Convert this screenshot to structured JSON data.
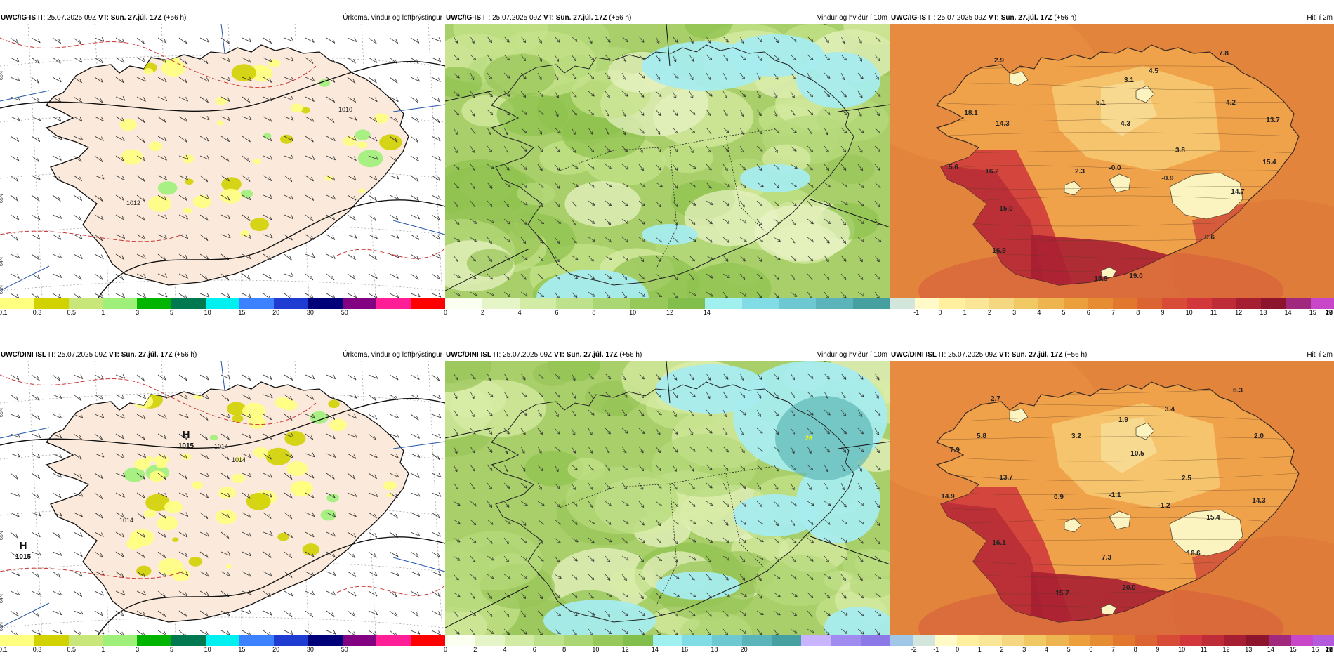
{
  "panels": [
    {
      "id": "p1",
      "model": "UWC/IG-IS",
      "it_label": "IT:",
      "it": "25.07.2025 09Z",
      "vt_label": "VT:",
      "vt": "Sun. 27.júl. 17Z",
      "offset": "(+56 h)",
      "title": "Úrkoma, vindur og loftþrýstingur",
      "type": "precip",
      "colorbar": {
        "colors": [
          "#ffff80",
          "#d2d200",
          "#c8e67a",
          "#9ef07a",
          "#00b400",
          "#007850",
          "#00f0f0",
          "#3c82ff",
          "#1e3cd2",
          "#000078",
          "#820082",
          "#ff1e96",
          "#ff0000"
        ],
        "ticks": [
          "0.1",
          "0.3",
          "0.5",
          "1",
          "3",
          "5",
          "10",
          "15",
          "20",
          "30",
          "50"
        ]
      },
      "lat_labels": [
        "66N",
        "65N",
        "64N",
        "63N"
      ],
      "pressure_labels": [
        "1012",
        "1010"
      ],
      "highs": []
    },
    {
      "id": "p2",
      "model": "UWC/IG-IS",
      "it_label": "IT:",
      "it": "25.07.2025 09Z",
      "vt_label": "VT:",
      "vt": "Sun. 27.júl. 17Z",
      "offset": "(+56 h)",
      "title": "Vindur og hviður í 10m",
      "type": "wind",
      "colorbar": {
        "colors": [
          "#fafff0",
          "#e6f5c8",
          "#d2eba5",
          "#bee18c",
          "#aad773",
          "#96c85a",
          "#82be4b",
          "#a0f0f0",
          "#82dce6",
          "#6ec8d2",
          "#5ab4b9",
          "#46a0a0"
        ],
        "ticks": [
          "0",
          "2",
          "4",
          "6",
          "8",
          "10",
          "12",
          "14"
        ]
      },
      "points": []
    },
    {
      "id": "p3",
      "model": "UWC/IG-IS",
      "it_label": "IT:",
      "it": "25.07.2025 09Z",
      "vt_label": "VT:",
      "vt": "Sun. 27.júl. 17Z",
      "offset": "(+56 h)",
      "title": "Hiti í 2m",
      "type": "temp",
      "colorbar": {
        "colors": [
          "#d2e6dc",
          "#fffac8",
          "#fff0a0",
          "#fae696",
          "#f5d782",
          "#f0c864",
          "#eeb450",
          "#eba03c",
          "#e68c32",
          "#e1782d",
          "#dc6432",
          "#d74b37",
          "#d2373c",
          "#be2d37",
          "#a51e32",
          "#8c142d",
          "#a0287d",
          "#c846c8"
        ],
        "ticks": [
          "-1",
          "0",
          "1",
          "2",
          "3",
          "4",
          "5",
          "6",
          "7",
          "8",
          "9",
          "10",
          "11",
          "12",
          "13",
          "14",
          "15",
          "16",
          "17",
          "18",
          "19",
          "20"
        ]
      },
      "temps": [
        "2.9",
        "7.8",
        "4.5",
        "3.1",
        "18.1",
        "5.1",
        "14.3",
        "4.3",
        "4.2",
        "13.7",
        "3.8",
        "15.4",
        "5.6",
        "16.2",
        "2.3",
        "-0.0",
        "-0.9",
        "14.7",
        "15.0",
        "9.6",
        "16.9",
        "18.9",
        "19.0"
      ]
    },
    {
      "id": "p4",
      "model": "UWC/DINI ISL",
      "it_label": "IT:",
      "it": "25.07.2025 09Z",
      "vt_label": "VT:",
      "vt": "Sun. 27.júl. 17Z",
      "offset": "(+56 h)",
      "title": "Úrkoma, vindur og loftþrýstingur",
      "type": "precip",
      "colorbar": {
        "colors": [
          "#ffff80",
          "#d2d200",
          "#c8e67a",
          "#9ef07a",
          "#00b400",
          "#007850",
          "#00f0f0",
          "#3c82ff",
          "#1e3cd2",
          "#000078",
          "#820082",
          "#ff1e96",
          "#ff0000"
        ],
        "ticks": [
          "0.1",
          "0.3",
          "0.5",
          "1",
          "3",
          "5",
          "10",
          "15",
          "20",
          "30",
          "50"
        ]
      },
      "lat_labels": [
        "66N",
        "65N",
        "64N",
        "63N"
      ],
      "pressure_labels": [
        "1014",
        "1014",
        "1014"
      ],
      "highs": [
        {
          "letter": "H",
          "value": "1015"
        },
        {
          "letter": "H",
          "value": "1015"
        }
      ]
    },
    {
      "id": "p5",
      "model": "UWC/DINI ISL",
      "it_label": "IT:",
      "it": "25.07.2025 09Z",
      "vt_label": "VT:",
      "vt": "Sun. 27.júl. 17Z",
      "offset": "(+56 h)",
      "title": "Vindur og hviður í 10m",
      "type": "wind",
      "colorbar": {
        "colors": [
          "#fafff0",
          "#e6f5c8",
          "#d2eba5",
          "#bee18c",
          "#aad773",
          "#96c85a",
          "#82be4b",
          "#a0f0f0",
          "#82dce6",
          "#6ec8d2",
          "#5ab4b9",
          "#46a0a0",
          "#c8b4ff",
          "#a08cf0",
          "#8c78e6"
        ],
        "ticks": [
          "0",
          "2",
          "4",
          "6",
          "8",
          "10",
          "12",
          "14",
          "16",
          "18",
          "20"
        ]
      },
      "points": [
        "26"
      ]
    },
    {
      "id": "p6",
      "model": "UWC/DINI ISL",
      "it_label": "IT:",
      "it": "25.07.2025 09Z",
      "vt_label": "VT:",
      "vt": "Sun. 27.júl. 17Z",
      "offset": "(+56 h)",
      "title": "Hiti í 2m",
      "type": "temp",
      "colorbar": {
        "colors": [
          "#a0c8e6",
          "#d2e6dc",
          "#fffac8",
          "#fff0a0",
          "#fae696",
          "#f5d782",
          "#f0c864",
          "#eeb450",
          "#eba03c",
          "#e68c32",
          "#e1782d",
          "#dc6432",
          "#d74b37",
          "#d2373c",
          "#be2d37",
          "#a51e32",
          "#8c142d",
          "#a0287d",
          "#c846c8",
          "#b45adc"
        ],
        "ticks": [
          "-2",
          "-1",
          "0",
          "1",
          "2",
          "3",
          "4",
          "5",
          "6",
          "7",
          "8",
          "9",
          "10",
          "11",
          "12",
          "13",
          "14",
          "15",
          "16",
          "17",
          "18",
          "19",
          "20",
          "21"
        ]
      },
      "temps": [
        "2.7",
        "6.3",
        "3.4",
        "1.9",
        "5.8",
        "3.2",
        "2.0",
        "7.9",
        "10.5",
        "13.7",
        "2.5",
        "14.9",
        "0.9",
        "-1.1",
        "-1.2",
        "14.3",
        "15.4",
        "16.1",
        "16.6",
        "7.3",
        "15.7",
        "20.0"
      ]
    }
  ]
}
